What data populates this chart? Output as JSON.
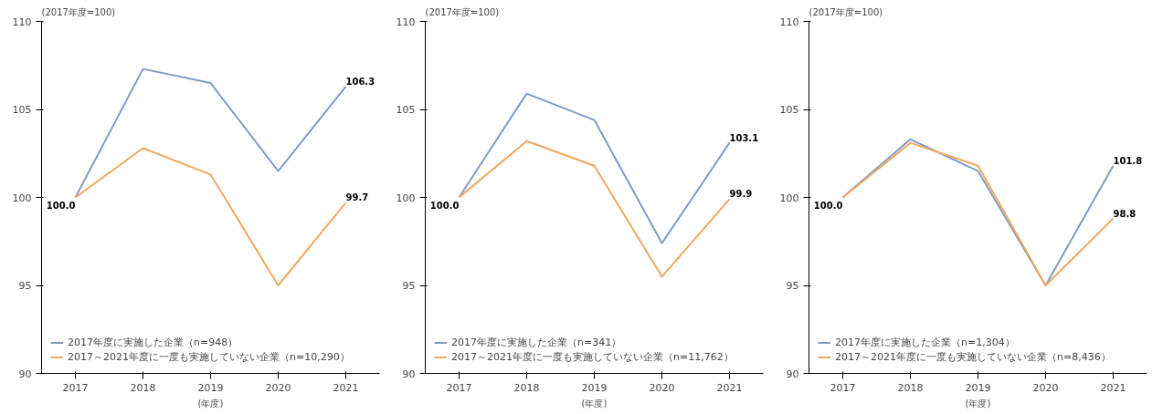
{
  "chart_data": [
    {
      "type": "line",
      "subtitle": "(2017年度=100)",
      "xlabel": "(年度)",
      "categories": [
        "2017",
        "2018",
        "2019",
        "2020",
        "2021"
      ],
      "ylim": [
        90,
        110
      ],
      "yticks": [
        90,
        95,
        100,
        105,
        110
      ],
      "legend": "bottom left",
      "series": [
        {
          "name": "2017年度に実施した企業（n=948）",
          "color": "#7f9cc4",
          "values": [
            100.0,
            107.3,
            106.5,
            101.5,
            106.3
          ],
          "value_labels": [
            "100.0",
            null,
            null,
            null,
            "106.3"
          ]
        },
        {
          "name": "2017～2021年度に一度も実施していない企業（n=10,290）",
          "color": "#f0a860",
          "values": [
            100.0,
            102.8,
            101.3,
            95.0,
            99.7
          ],
          "value_labels": [
            null,
            null,
            null,
            null,
            "99.7"
          ]
        }
      ]
    },
    {
      "type": "line",
      "subtitle": "(2017年度=100)",
      "xlabel": "(年度)",
      "categories": [
        "2017",
        "2018",
        "2019",
        "2020",
        "2021"
      ],
      "ylim": [
        90,
        110
      ],
      "yticks": [
        90,
        95,
        100,
        105,
        110
      ],
      "legend": "bottom left",
      "series": [
        {
          "name": "2017年度に実施した企業（n=341）",
          "color": "#7f9cc4",
          "values": [
            100.0,
            105.9,
            104.4,
            97.4,
            103.1
          ],
          "value_labels": [
            "100.0",
            null,
            null,
            null,
            "103.1"
          ]
        },
        {
          "name": "2017～2021年度に一度も実施していない企業（n=11,762）",
          "color": "#f0a860",
          "values": [
            100.0,
            103.2,
            101.8,
            95.5,
            99.9
          ],
          "value_labels": [
            null,
            null,
            null,
            null,
            "99.9"
          ]
        }
      ]
    },
    {
      "type": "line",
      "subtitle": "(2017年度=100)",
      "xlabel": "(年度)",
      "categories": [
        "2017",
        "2018",
        "2019",
        "2020",
        "2021"
      ],
      "ylim": [
        90,
        110
      ],
      "yticks": [
        90,
        95,
        100,
        105,
        110
      ],
      "legend": "bottom left",
      "series": [
        {
          "name": "2017年度に実施した企業（n=1,304）",
          "color": "#7f9cc4",
          "values": [
            100.0,
            103.3,
            101.5,
            95.0,
            101.8
          ],
          "value_labels": [
            "100.0",
            null,
            null,
            null,
            "101.8"
          ]
        },
        {
          "name": "2017～2021年度に一度も実施していない企業（n=8,436）",
          "color": "#f0a860",
          "values": [
            100.0,
            103.1,
            101.8,
            95.0,
            98.8
          ],
          "value_labels": [
            null,
            null,
            null,
            null,
            "98.8"
          ]
        }
      ]
    }
  ]
}
